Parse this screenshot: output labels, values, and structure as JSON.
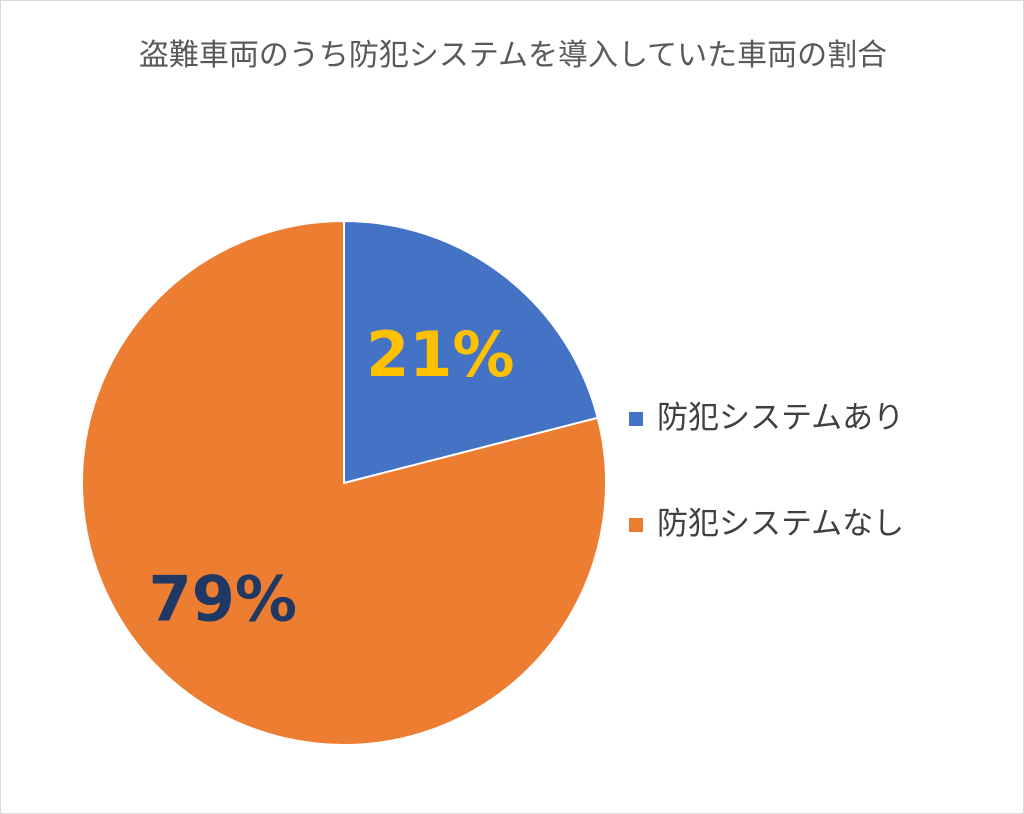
{
  "chart_data": {
    "type": "pie",
    "title": "盗難車両のうち防犯システムを導入していた車両の割合",
    "categories": [
      "防犯システムあり",
      "防犯システムなし"
    ],
    "values": [
      21,
      79
    ],
    "value_labels": [
      "21%",
      "79%"
    ],
    "colors": [
      "#4472c4",
      "#ed7d31"
    ],
    "label_colors": [
      "#ffc000",
      "#203864"
    ],
    "legend": "right"
  }
}
